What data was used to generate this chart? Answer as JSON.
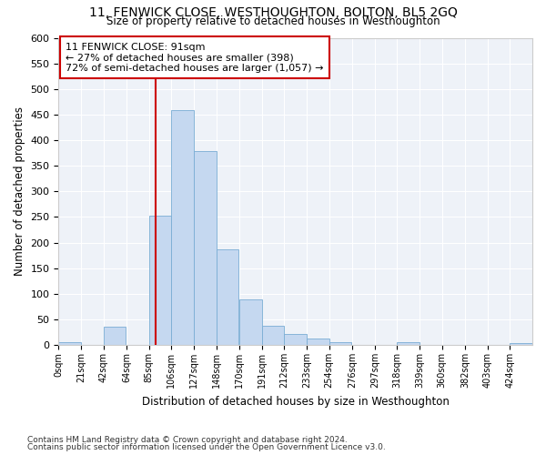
{
  "title": "11, FENWICK CLOSE, WESTHOUGHTON, BOLTON, BL5 2GQ",
  "subtitle": "Size of property relative to detached houses in Westhoughton",
  "xlabel": "Distribution of detached houses by size in Westhoughton",
  "ylabel": "Number of detached properties",
  "footnote1": "Contains HM Land Registry data © Crown copyright and database right 2024.",
  "footnote2": "Contains public sector information licensed under the Open Government Licence v3.0.",
  "annotation_line1": "11 FENWICK CLOSE: 91sqm",
  "annotation_line2": "← 27% of detached houses are smaller (398)",
  "annotation_line3": "72% of semi-detached houses are larger (1,057) →",
  "property_size": 91,
  "bar_color": "#c5d8f0",
  "bar_edge_color": "#7aadd4",
  "vline_color": "#cc0000",
  "background_color": "#eef2f8",
  "categories": [
    "0sqm",
    "21sqm",
    "42sqm",
    "64sqm",
    "85sqm",
    "106sqm",
    "127sqm",
    "148sqm",
    "170sqm",
    "191sqm",
    "212sqm",
    "233sqm",
    "254sqm",
    "276sqm",
    "297sqm",
    "318sqm",
    "339sqm",
    "360sqm",
    "382sqm",
    "403sqm",
    "424sqm"
  ],
  "bin_edges": [
    0,
    21,
    42,
    64,
    85,
    106,
    127,
    148,
    170,
    191,
    212,
    233,
    254,
    276,
    297,
    318,
    339,
    360,
    382,
    403,
    424
  ],
  "bar_heights": [
    5,
    0,
    35,
    0,
    252,
    458,
    378,
    187,
    90,
    37,
    21,
    13,
    6,
    0,
    0,
    5,
    0,
    0,
    0,
    0,
    4
  ],
  "ylim": [
    0,
    600
  ],
  "yticks": [
    0,
    50,
    100,
    150,
    200,
    250,
    300,
    350,
    400,
    450,
    500,
    550,
    600
  ]
}
